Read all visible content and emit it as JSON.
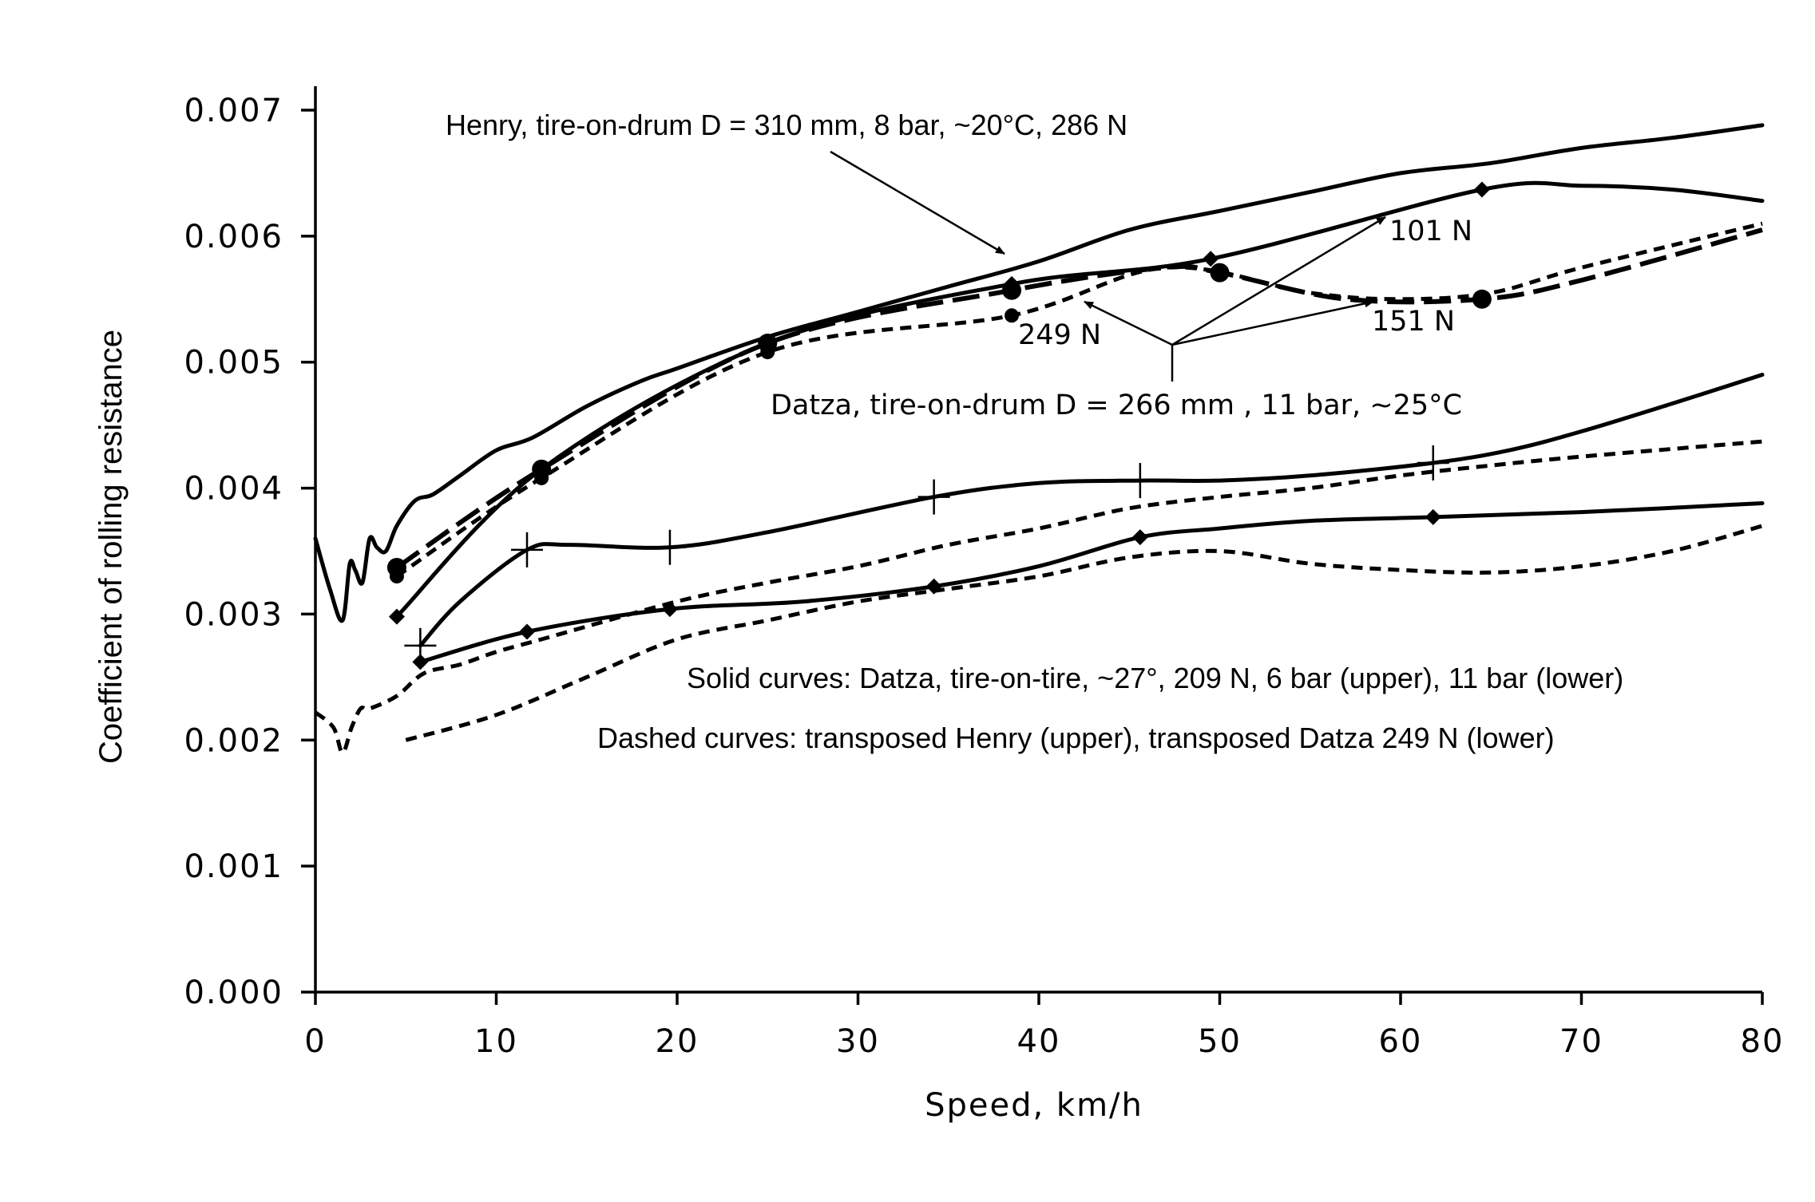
{
  "chart_data": {
    "type": "line",
    "xlabel": "Speed, km/h",
    "ylabel": "Coefficient of rolling resistance",
    "xlim": [
      0,
      80
    ],
    "ylim": [
      0,
      0.007
    ],
    "x_ticks": [
      "0",
      "10",
      "20",
      "30",
      "40",
      "50",
      "60",
      "70",
      "80"
    ],
    "y_ticks": [
      "0.000",
      "0.001",
      "0.002",
      "0.003",
      "0.004",
      "0.005",
      "0.006",
      "0.007"
    ],
    "grid": false,
    "series": [
      {
        "style": "solid",
        "marker": "none",
        "x": [
          0,
          0.8,
          1.5,
          1.9,
          2.2,
          2.6,
          3.0,
          3.4,
          3.9,
          4.5,
          5.5,
          6.5,
          8,
          10,
          12,
          15,
          18,
          20,
          25,
          30,
          35,
          40,
          45,
          50,
          55,
          60,
          65,
          70,
          75,
          80
        ],
        "y": [
          0.0036,
          0.0032,
          0.00295,
          0.0034,
          0.00335,
          0.00325,
          0.0036,
          0.00353,
          0.0035,
          0.0037,
          0.0039,
          0.00395,
          0.0041,
          0.0043,
          0.0044,
          0.00465,
          0.00485,
          0.00495,
          0.0052,
          0.0054,
          0.0056,
          0.0058,
          0.00605,
          0.0062,
          0.00635,
          0.0065,
          0.00658,
          0.0067,
          0.00678,
          0.00688
        ]
      },
      {
        "style": "solid",
        "marker": "diamond",
        "x": [
          4.5,
          12.5,
          25,
          38.5,
          49.5,
          64.5,
          70,
          75,
          80
        ],
        "y": [
          0.00298,
          0.00415,
          0.00515,
          0.00562,
          0.00582,
          0.00637,
          0.0064,
          0.00637,
          0.00628
        ]
      },
      {
        "style": "long-dash",
        "marker": "circle",
        "x": [
          4.5,
          12.5,
          25,
          38.5,
          47,
          50,
          57,
          64.5,
          70,
          80
        ],
        "y": [
          0.00337,
          0.00415,
          0.00515,
          0.00557,
          0.00575,
          0.00571,
          0.0055,
          0.0055,
          0.00565,
          0.00605
        ]
      },
      {
        "style": "dashed",
        "marker": "circle",
        "x": [
          4.5,
          12.5,
          25,
          38.5,
          47,
          55,
          60,
          65,
          70,
          80
        ],
        "y": [
          0.0033,
          0.00408,
          0.00508,
          0.00537,
          0.00575,
          0.00555,
          0.0055,
          0.00555,
          0.00575,
          0.0061
        ]
      },
      {
        "style": "solid",
        "marker": "plus",
        "x": [
          5.8,
          8,
          11.7,
          14,
          19.6,
          25,
          34.2,
          40,
          45.6,
          50,
          55,
          61.8,
          66,
          70,
          75,
          80
        ],
        "y": [
          0.00275,
          0.0031,
          0.00351,
          0.00355,
          0.00353,
          0.00365,
          0.00393,
          0.00404,
          0.00406,
          0.00406,
          0.0041,
          0.0042,
          0.0043,
          0.00445,
          0.00467,
          0.0049
        ]
      },
      {
        "style": "solid",
        "marker": "diamond",
        "x": [
          5.8,
          11.7,
          19.6,
          27,
          34.2,
          40,
          45.6,
          50,
          55,
          61.8,
          70,
          80
        ],
        "y": [
          0.00262,
          0.00286,
          0.00304,
          0.0031,
          0.00322,
          0.00338,
          0.00361,
          0.00368,
          0.00374,
          0.00377,
          0.00381,
          0.00388
        ]
      },
      {
        "style": "dashed",
        "marker": "none",
        "x": [
          0,
          1,
          1.5,
          2,
          2.5,
          3,
          4.5,
          6,
          8,
          10,
          12.5,
          20,
          25,
          30,
          35,
          40,
          45,
          50,
          55,
          60,
          65,
          70,
          80
        ],
        "y": [
          0.00222,
          0.0021,
          0.0019,
          0.0021,
          0.00225,
          0.00225,
          0.00235,
          0.00253,
          0.0026,
          0.0027,
          0.0028,
          0.0031,
          0.00325,
          0.00338,
          0.00355,
          0.00368,
          0.00384,
          0.00393,
          0.004,
          0.0041,
          0.00418,
          0.00425,
          0.00437
        ]
      },
      {
        "style": "dashed",
        "marker": "none",
        "x": [
          5,
          10,
          15,
          20,
          25,
          30,
          35,
          40,
          45,
          50,
          55,
          60,
          65,
          70,
          75,
          80
        ],
        "y": [
          0.002,
          0.0022,
          0.0025,
          0.0028,
          0.00295,
          0.0031,
          0.0032,
          0.0033,
          0.00345,
          0.0035,
          0.0034,
          0.00335,
          0.00333,
          0.00338,
          0.0035,
          0.0037
        ]
      }
    ],
    "annotations": [
      "Henry, tire-on-drum D = 310 mm, 8 bar, ~20°C, 286 N",
      "101 N",
      "151 N",
      "249 N",
      "Datza, tire-on-drum  D = 266 mm , 11 bar, ~25°C",
      "Solid curves: Datza, tire-on-tire, ~27°, 209 N, 6 bar (upper), 11 bar (lower)",
      "Dashed curves: transposed Henry (upper), transposed Datza 249 N (lower)"
    ]
  }
}
